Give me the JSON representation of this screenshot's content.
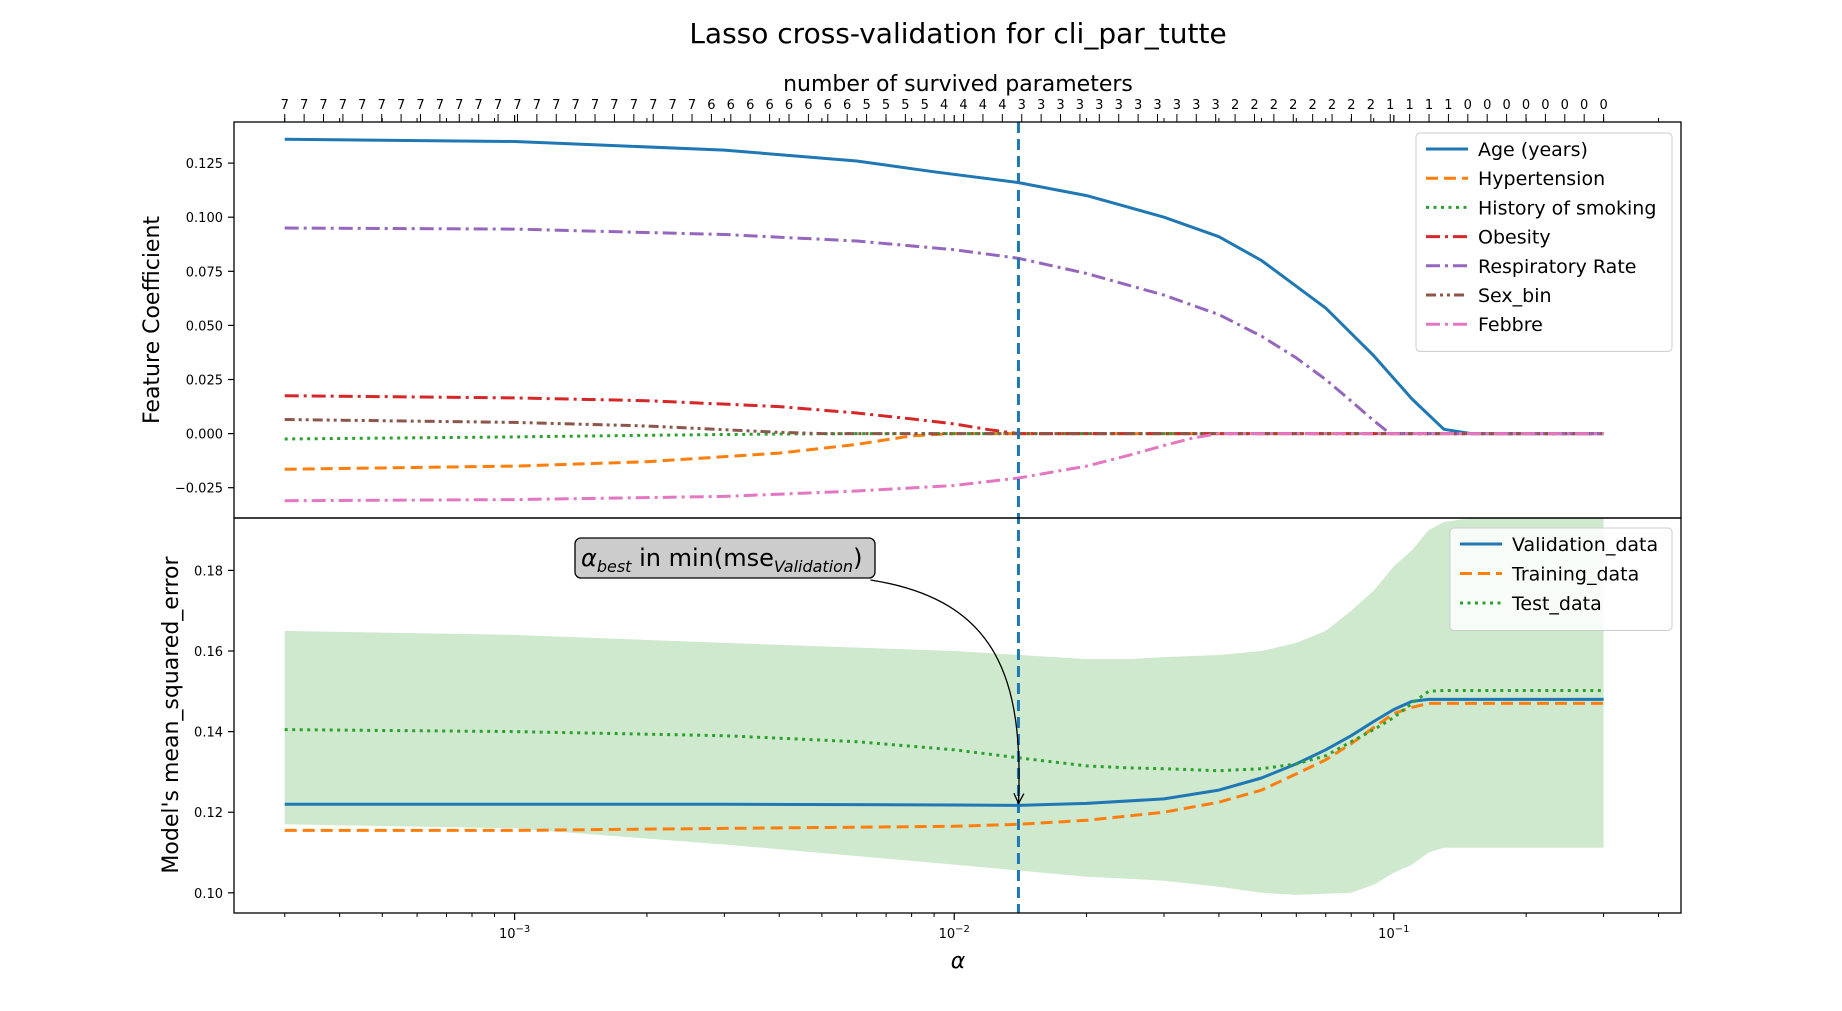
{
  "chart_data": {
    "type": "line",
    "title": "Lasso cross-validation for cli_par_tutte",
    "xlabel": "α",
    "top_xlabel": "number of survived parameters",
    "xscale": "log",
    "xlim": [
      0.00023,
      0.45
    ],
    "x_tick_labels": [
      {
        "value": 0.001,
        "base": "10",
        "exp": "−3"
      },
      {
        "value": 0.01,
        "base": "10",
        "exp": "−2"
      },
      {
        "value": 0.1,
        "base": "10",
        "exp": "−1"
      }
    ],
    "alpha_best": 0.014,
    "survived_counts": {
      "alpha_start": 0.0003,
      "alpha_end": 0.3,
      "values": [
        7,
        7,
        7,
        7,
        7,
        7,
        7,
        7,
        7,
        7,
        7,
        7,
        7,
        7,
        7,
        7,
        7,
        7,
        7,
        7,
        7,
        7,
        6,
        6,
        6,
        6,
        6,
        6,
        6,
        6,
        5,
        5,
        5,
        5,
        4,
        4,
        4,
        4,
        3,
        3,
        3,
        3,
        3,
        3,
        3,
        3,
        3,
        3,
        3,
        2,
        2,
        2,
        2,
        2,
        2,
        2,
        2,
        1,
        1,
        1,
        1,
        0,
        0,
        0,
        0,
        0,
        0,
        0,
        0
      ]
    },
    "panels": [
      {
        "ylabel": "Feature Coefficient",
        "ylim": [
          -0.039,
          0.144
        ],
        "yticks": [
          -0.025,
          0.0,
          0.025,
          0.05,
          0.075,
          0.1,
          0.125
        ],
        "ytick_labels": [
          "−0.025",
          "0.000",
          "0.025",
          "0.050",
          "0.075",
          "0.100",
          "0.125"
        ],
        "legend": "top-right",
        "series": [
          {
            "name": "Age (years)",
            "color": "#1f77b4",
            "style": "solid",
            "x": [
              0.0003,
              0.001,
              0.003,
              0.006,
              0.009,
              0.014,
              0.02,
              0.03,
              0.04,
              0.05,
              0.07,
              0.09,
              0.11,
              0.13,
              0.15,
              0.3
            ],
            "y": [
              0.136,
              0.135,
              0.131,
              0.126,
              0.121,
              0.116,
              0.11,
              0.1,
              0.091,
              0.08,
              0.058,
              0.036,
              0.016,
              0.002,
              0.0,
              0.0
            ]
          },
          {
            "name": "Hypertension",
            "color": "#ff7f0e",
            "style": "dashed",
            "x": [
              0.0003,
              0.001,
              0.002,
              0.004,
              0.006,
              0.008,
              0.01,
              0.3
            ],
            "y": [
              -0.0165,
              -0.015,
              -0.013,
              -0.009,
              -0.005,
              -0.001,
              0.0,
              0.0
            ]
          },
          {
            "name": "History of smoking",
            "color": "#2ca02c",
            "style": "dotted",
            "x": [
              0.0003,
              0.001,
              0.002,
              0.004,
              0.006,
              0.3
            ],
            "y": [
              -0.0025,
              -0.0015,
              -0.0008,
              -0.0002,
              0.0,
              0.0
            ]
          },
          {
            "name": "Obesity",
            "color": "#d62728",
            "style": "dashdot",
            "x": [
              0.0003,
              0.001,
              0.002,
              0.004,
              0.006,
              0.008,
              0.01,
              0.012,
              0.014,
              0.3
            ],
            "y": [
              0.0175,
              0.0165,
              0.0152,
              0.0125,
              0.0095,
              0.0068,
              0.0045,
              0.0018,
              0.0,
              0.0
            ]
          },
          {
            "name": "Respiratory Rate",
            "color": "#9467bd",
            "style": "dashdot",
            "x": [
              0.0003,
              0.001,
              0.003,
              0.006,
              0.01,
              0.014,
              0.02,
              0.03,
              0.04,
              0.05,
              0.06,
              0.07,
              0.08,
              0.09,
              0.098,
              0.3
            ],
            "y": [
              0.095,
              0.0945,
              0.092,
              0.089,
              0.085,
              0.081,
              0.074,
              0.064,
              0.055,
              0.045,
              0.035,
              0.025,
              0.015,
              0.006,
              0.0,
              0.0
            ]
          },
          {
            "name": "Sex_bin",
            "color": "#8c564b",
            "style": "dashdotdot",
            "x": [
              0.0003,
              0.001,
              0.002,
              0.003,
              0.004,
              0.005,
              0.3
            ],
            "y": [
              0.0065,
              0.0052,
              0.0035,
              0.0018,
              0.0006,
              0.0,
              0.0
            ]
          },
          {
            "name": "Febbre",
            "color": "#e377c2",
            "style": "dashdot",
            "x": [
              0.0003,
              0.001,
              0.003,
              0.006,
              0.01,
              0.014,
              0.02,
              0.025,
              0.03,
              0.035,
              0.04,
              0.3
            ],
            "y": [
              -0.031,
              -0.0305,
              -0.029,
              -0.0265,
              -0.024,
              -0.0205,
              -0.015,
              -0.01,
              -0.0055,
              -0.002,
              0.0,
              0.0
            ]
          }
        ]
      },
      {
        "ylabel": "Model's mean_squared_error",
        "ylim": [
          0.095,
          0.193
        ],
        "yticks": [
          0.1,
          0.12,
          0.14,
          0.16,
          0.18
        ],
        "ytick_labels": [
          "0.10",
          "0.12",
          "0.14",
          "0.16",
          "0.18"
        ],
        "legend": "top-right",
        "band": {
          "color": "#2ca02c",
          "opacity": 0.23,
          "x": [
            0.0003,
            0.001,
            0.003,
            0.01,
            0.02,
            0.025,
            0.03,
            0.04,
            0.05,
            0.06,
            0.07,
            0.08,
            0.09,
            0.1,
            0.11,
            0.12,
            0.13,
            0.15,
            0.2,
            0.3
          ],
          "upper": [
            0.165,
            0.164,
            0.162,
            0.16,
            0.158,
            0.158,
            0.1585,
            0.159,
            0.16,
            0.162,
            0.165,
            0.17,
            0.175,
            0.181,
            0.185,
            0.19,
            0.192,
            0.193,
            0.193,
            0.193
          ],
          "lower": [
            0.117,
            0.116,
            0.112,
            0.107,
            0.104,
            0.1035,
            0.103,
            0.1015,
            0.1,
            0.0995,
            0.0998,
            0.1,
            0.102,
            0.105,
            0.107,
            0.11,
            0.1112,
            0.1112,
            0.1112,
            0.1112
          ]
        },
        "series": [
          {
            "name": "Validation_data",
            "color": "#1f77b4",
            "style": "solid",
            "x": [
              0.0003,
              0.001,
              0.003,
              0.01,
              0.014,
              0.02,
              0.03,
              0.04,
              0.05,
              0.06,
              0.07,
              0.08,
              0.09,
              0.1,
              0.11,
              0.12,
              0.13,
              0.3
            ],
            "y": [
              0.122,
              0.122,
              0.122,
              0.1218,
              0.1217,
              0.1222,
              0.1233,
              0.1255,
              0.1285,
              0.132,
              0.1355,
              0.139,
              0.1425,
              0.1455,
              0.1475,
              0.148,
              0.148,
              0.148
            ]
          },
          {
            "name": "Training_data",
            "color": "#ff7f0e",
            "style": "dashed",
            "x": [
              0.0003,
              0.001,
              0.003,
              0.01,
              0.014,
              0.02,
              0.03,
              0.04,
              0.05,
              0.06,
              0.07,
              0.08,
              0.09,
              0.1,
              0.11,
              0.12,
              0.13,
              0.3
            ],
            "y": [
              0.1155,
              0.1155,
              0.116,
              0.1165,
              0.117,
              0.118,
              0.12,
              0.1225,
              0.1255,
              0.1295,
              0.133,
              0.137,
              0.141,
              0.1445,
              0.146,
              0.147,
              0.147,
              0.147
            ]
          },
          {
            "name": "Test_data",
            "color": "#2ca02c",
            "style": "dotted",
            "x": [
              0.0003,
              0.001,
              0.003,
              0.006,
              0.01,
              0.014,
              0.02,
              0.025,
              0.03,
              0.04,
              0.05,
              0.06,
              0.07,
              0.08,
              0.09,
              0.1,
              0.11,
              0.12,
              0.13,
              0.3
            ],
            "y": [
              0.1405,
              0.14,
              0.139,
              0.1375,
              0.1355,
              0.1335,
              0.1315,
              0.131,
              0.1308,
              0.1303,
              0.1308,
              0.132,
              0.134,
              0.1375,
              0.1405,
              0.1435,
              0.147,
              0.15,
              0.1502,
              0.1502
            ]
          }
        ]
      }
    ],
    "annotation": {
      "text_symbol": "α",
      "text_symbol_sub": "best",
      "text_main": " in min(mse",
      "text_main_sub": "Validation",
      "text_close": ")",
      "target_x": 0.014,
      "target_y": 0.1217
    }
  }
}
